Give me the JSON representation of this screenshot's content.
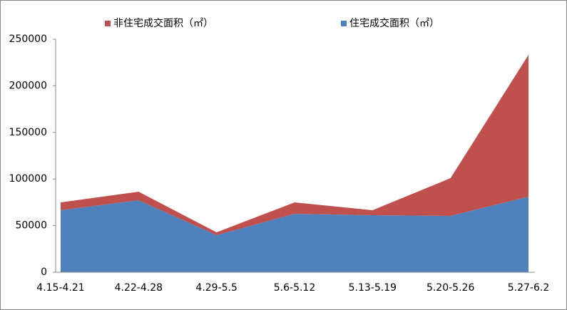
{
  "chart_data": {
    "type": "stacked_area",
    "categories": [
      "4.15-4.21",
      "4.22-4.28",
      "4.29-5.5",
      "5.6-5.12",
      "5.13-5.19",
      "5.20-5.26",
      "5.27-6.2"
    ],
    "series": [
      {
        "name": "住宅成交面积（㎡）",
        "color": "#4f81bd",
        "values": [
          66500,
          77200,
          39800,
          62700,
          61200,
          60400,
          81000
        ]
      },
      {
        "name": "非住宅成交面积（㎡）",
        "color": "#c0504d",
        "values": [
          8400,
          9200,
          3000,
          12200,
          5300,
          40500,
          152200
        ]
      }
    ],
    "ylim": [
      0,
      250000
    ],
    "yticks": [
      0,
      50000,
      100000,
      150000,
      200000,
      250000
    ],
    "legend": "top",
    "grid": false
  }
}
